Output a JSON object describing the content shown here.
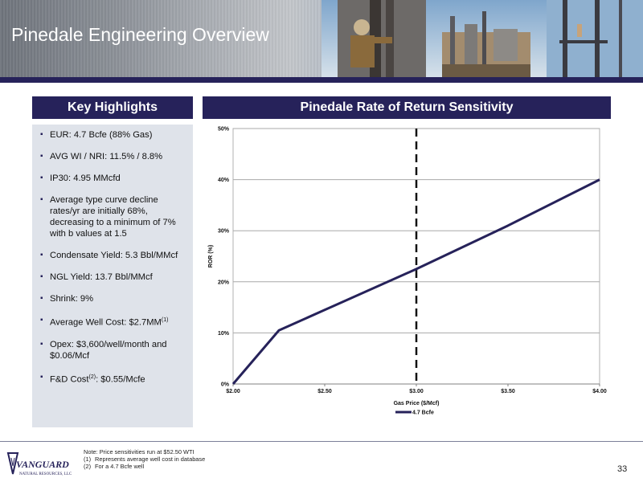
{
  "header": {
    "title": "Pinedale Engineering Overview"
  },
  "highlights": {
    "title": "Key Highlights",
    "items": [
      {
        "text": "EUR: 4.7 Bcfe (88% Gas)"
      },
      {
        "text": "AVG WI / NRI: 11.5% / 8.8%"
      },
      {
        "text": "IP30: 4.95 MMcfd"
      },
      {
        "text": "Average type curve decline rates/yr are initially 68%, decreasing to a minimum of 7% with b values at 1.5"
      },
      {
        "text": "Condensate Yield: 5.3 Bbl/MMcf"
      },
      {
        "text": "NGL Yield: 13.7 Bbl/MMcf"
      },
      {
        "text": "Shrink: 9%"
      },
      {
        "text": "Average Well Cost: $2.7MM",
        "sup": "(1)",
        "after": ""
      },
      {
        "text": "Opex: $3,600/well/month and $0.06/Mcf"
      },
      {
        "text": "F&D Cost",
        "sup": "(2)",
        "after": ": $0.55/Mcfe"
      }
    ]
  },
  "chart_title": "Pinedale Rate of Return Sensitivity",
  "chart_data": {
    "type": "line",
    "x": [
      2.0,
      2.25,
      2.5,
      3.0,
      3.5,
      4.0
    ],
    "series": [
      {
        "name": "4.7 Bcfe",
        "values": [
          0,
          10.5,
          14.5,
          22.5,
          31,
          40
        ],
        "color": "#26225a"
      }
    ],
    "xlim": [
      2.0,
      4.0
    ],
    "ylim": [
      0,
      50
    ],
    "x_ticks": [
      2.0,
      2.5,
      3.0,
      3.5,
      4.0
    ],
    "x_tick_labels": [
      "$2.00",
      "$2.50",
      "$3.00",
      "$3.50",
      "$4.00"
    ],
    "y_ticks": [
      0,
      10,
      20,
      30,
      40,
      50
    ],
    "y_tick_labels": [
      "0%",
      "10%",
      "20%",
      "30%",
      "40%",
      "50%"
    ],
    "xlabel": "Gas Price ($/Mcf)",
    "ylabel": "ROR (%)",
    "reference_line_x": 3.0,
    "grid": true,
    "legend_position": "bottom-center"
  },
  "footer": {
    "note": "Note: Price sensitivities run at $52.50 WTI",
    "footnotes": [
      {
        "num": "(1)",
        "text": "Represents average well cost in database"
      },
      {
        "num": "(2)",
        "text": "For a 4.7 Bcfe well"
      }
    ],
    "logo_name": "VANGUARD",
    "logo_sub": "NATURAL RESOURCES, LLC",
    "page_number": "33"
  }
}
